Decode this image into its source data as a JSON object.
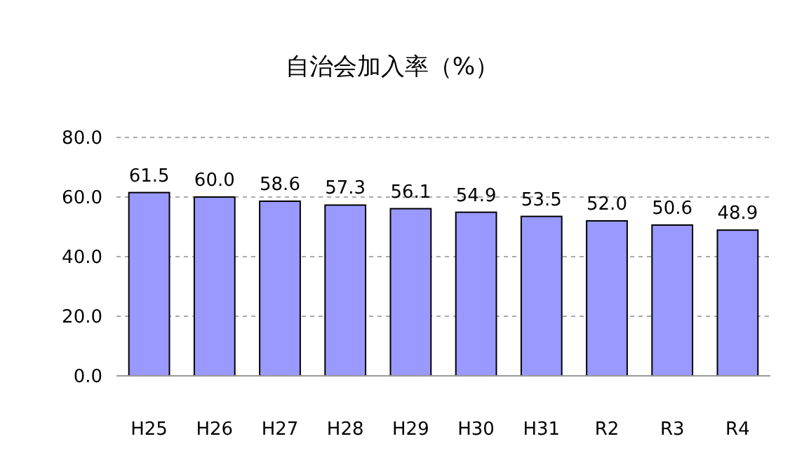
{
  "chart_data": {
    "type": "bar",
    "title": "自治会加入率（%）",
    "categories": [
      "H25",
      "H26",
      "H27",
      "H28",
      "H29",
      "H30",
      "H31",
      "R2",
      "R3",
      "R4"
    ],
    "values": [
      61.5,
      60.0,
      58.6,
      57.3,
      56.1,
      54.9,
      53.5,
      52.0,
      50.6,
      48.9
    ],
    "value_labels": [
      "61.5",
      "60.0",
      "58.6",
      "57.3",
      "56.1",
      "54.9",
      "53.5",
      "52.0",
      "50.6",
      "48.9"
    ],
    "color": "#9999ff",
    "ylim": [
      0,
      80
    ],
    "yticks": [
      {
        "value": 0,
        "label": "0.0"
      },
      {
        "value": 20,
        "label": "20.0"
      },
      {
        "value": 40,
        "label": "40.0"
      },
      {
        "value": 60,
        "label": "60.0"
      },
      {
        "value": 80,
        "label": "80.0"
      }
    ],
    "grid": "y"
  }
}
